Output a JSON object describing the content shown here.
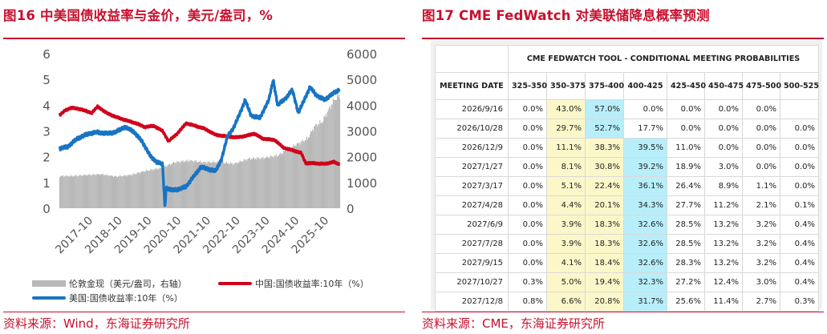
{
  "left_panel": {
    "title": "图16  中美国债收益率与金价，美元/盎司，%",
    "source": "资料来源：Wind，东海证券研究所"
  },
  "right_panel": {
    "title": "图17  CME FedWatch 对美联储降息概率预测",
    "source": "资料来源：CME，东海证券研究所"
  },
  "colors": {
    "accent": "#c8102e",
    "gold_bar": "#b8b8b8",
    "china_line": "#d0021b",
    "us_line": "#1874c3",
    "highlight_yellow": "#fcf7c9",
    "highlight_cyan": "#b7eefa"
  },
  "chart_data": {
    "type": "line",
    "x_tick_labels": [
      "2017-10",
      "2018-10",
      "2019-10",
      "2020-10",
      "2021-10",
      "2022-10",
      "2023-10",
      "2024-10",
      "2025-10"
    ],
    "y_left_ticks": [
      "0",
      "1",
      "2",
      "3",
      "4",
      "5",
      "6"
    ],
    "y_right_ticks": [
      "0",
      "1000",
      "2000",
      "3000",
      "4000",
      "5000",
      "6000"
    ],
    "ylim_left": [
      0,
      6
    ],
    "ylim_right": [
      0,
      6000
    ],
    "grid": false,
    "legend_placement": "bottom",
    "series": [
      {
        "name": "伦敦金现（美元/盎司，右轴）",
        "kind": "bar",
        "axis": "right",
        "x": [
          2017.0,
          2017.5,
          2018.0,
          2018.5,
          2019.0,
          2019.5,
          2020.0,
          2020.5,
          2021.0,
          2021.5,
          2022.0,
          2022.5,
          2023.0,
          2023.5,
          2024.0,
          2024.5,
          2025.0,
          2025.25,
          2025.5,
          2025.75,
          2025.9,
          2026.1
        ],
        "values": [
          1250,
          1290,
          1320,
          1230,
          1290,
          1450,
          1550,
          1780,
          1850,
          1780,
          1800,
          1720,
          1920,
          1950,
          2050,
          2400,
          2700,
          3200,
          3350,
          3900,
          4200,
          4400
        ]
      },
      {
        "name": "中国:国债收益率:10年（%）",
        "kind": "line",
        "axis": "left",
        "x": [
          2016.6,
          2016.8,
          2017.0,
          2017.3,
          2017.7,
          2017.9,
          2018.2,
          2018.5,
          2018.9,
          2019.2,
          2019.5,
          2019.8,
          2020.1,
          2020.3,
          2020.6,
          2020.9,
          2021.2,
          2021.5,
          2021.9,
          2022.2,
          2022.6,
          2022.9,
          2023.2,
          2023.5,
          2023.9,
          2024.2,
          2024.5,
          2024.8,
          2024.95,
          2025.2,
          2025.6,
          2025.9,
          2026.1
        ],
        "values": [
          3.6,
          3.8,
          3.9,
          3.85,
          3.7,
          3.95,
          3.7,
          3.55,
          3.4,
          3.3,
          3.15,
          3.2,
          3.0,
          2.6,
          2.9,
          3.3,
          3.2,
          3.1,
          2.85,
          2.8,
          2.75,
          2.8,
          2.9,
          2.7,
          2.65,
          2.35,
          2.25,
          2.15,
          1.75,
          1.75,
          1.72,
          1.8,
          1.7
        ]
      },
      {
        "name": "美国:国债收益率:10年（%）",
        "kind": "line",
        "axis": "left",
        "x": [
          2016.6,
          2016.9,
          2017.2,
          2017.6,
          2017.9,
          2018.2,
          2018.5,
          2018.8,
          2019.1,
          2019.4,
          2019.7,
          2019.9,
          2020.1,
          2020.18,
          2020.22,
          2020.4,
          2020.7,
          2020.9,
          2021.2,
          2021.4,
          2021.7,
          2021.9,
          2022.1,
          2022.3,
          2022.5,
          2022.8,
          2022.9,
          2023.1,
          2023.4,
          2023.7,
          2023.85,
          2024.0,
          2024.3,
          2024.5,
          2024.7,
          2024.9,
          2025.1,
          2025.3,
          2025.6,
          2025.8,
          2026.1
        ],
        "values": [
          2.3,
          2.4,
          2.7,
          2.9,
          2.95,
          2.9,
          2.95,
          3.15,
          3.0,
          2.6,
          2.0,
          1.8,
          1.7,
          0.0,
          0.8,
          0.7,
          0.75,
          0.85,
          1.3,
          1.6,
          1.5,
          1.45,
          1.9,
          2.8,
          3.1,
          3.9,
          4.2,
          3.6,
          3.5,
          4.2,
          4.98,
          4.0,
          4.3,
          4.6,
          3.7,
          4.2,
          4.7,
          4.4,
          4.2,
          4.4,
          4.6
        ]
      }
    ]
  },
  "fedwatch": {
    "caption": "CME FEDWATCH TOOL - CONDITIONAL MEETING PROBABILITIES",
    "headers": [
      "MEETING DATE",
      "325-350",
      "350-375",
      "375-400",
      "400-425",
      "425-450",
      "450-475",
      "475-500",
      "500-525"
    ],
    "rows": [
      {
        "date": "2026/9/16",
        "cells": [
          "0.0%",
          "43.0%",
          "57.0%",
          "0.0%",
          "0.0%",
          "0.0%",
          "0.0%",
          ""
        ],
        "hi": [
          1,
          2
        ]
      },
      {
        "date": "2026/10/28",
        "cells": [
          "0.0%",
          "29.7%",
          "52.7%",
          "17.7%",
          "0.0%",
          "0.0%",
          "0.0%",
          "0.0%"
        ],
        "hi": [
          2
        ]
      },
      {
        "date": "2026/12/9",
        "cells": [
          "0.0%",
          "11.1%",
          "38.3%",
          "39.5%",
          "11.0%",
          "0.0%",
          "0.0%",
          "0.0%"
        ],
        "hi": [
          3
        ]
      },
      {
        "date": "2027/1/27",
        "cells": [
          "0.0%",
          "8.1%",
          "30.8%",
          "39.2%",
          "18.9%",
          "3.0%",
          "0.0%",
          "0.0%"
        ],
        "hi": [
          3
        ]
      },
      {
        "date": "2027/3/17",
        "cells": [
          "0.0%",
          "5.1%",
          "22.4%",
          "36.1%",
          "26.4%",
          "8.9%",
          "1.1%",
          "0.0%"
        ],
        "hi": [
          3
        ]
      },
      {
        "date": "2027/4/28",
        "cells": [
          "0.0%",
          "4.4%",
          "20.1%",
          "34.3%",
          "27.7%",
          "11.2%",
          "2.1%",
          "0.1%"
        ],
        "hi": [
          3
        ]
      },
      {
        "date": "2027/6/9",
        "cells": [
          "0.0%",
          "3.9%",
          "18.3%",
          "32.6%",
          "28.5%",
          "13.2%",
          "3.2%",
          "0.4%"
        ],
        "hi": [
          3
        ]
      },
      {
        "date": "2027/7/28",
        "cells": [
          "0.0%",
          "3.9%",
          "18.3%",
          "32.6%",
          "28.5%",
          "13.2%",
          "3.2%",
          "0.4%"
        ],
        "hi": [
          3
        ]
      },
      {
        "date": "2027/9/15",
        "cells": [
          "0.0%",
          "4.1%",
          "18.4%",
          "32.6%",
          "28.3%",
          "13.2%",
          "3.2%",
          "0.4%"
        ],
        "hi": [
          3
        ]
      },
      {
        "date": "2027/10/27",
        "cells": [
          "0.3%",
          "5.0%",
          "19.4%",
          "32.3%",
          "27.2%",
          "12.4%",
          "3.0%",
          "0.4%"
        ],
        "hi": [
          3
        ]
      },
      {
        "date": "2027/12/8",
        "cells": [
          "0.8%",
          "6.6%",
          "20.8%",
          "31.7%",
          "25.6%",
          "11.4%",
          "2.7%",
          "0.3%"
        ],
        "hi": [
          3
        ]
      }
    ]
  }
}
